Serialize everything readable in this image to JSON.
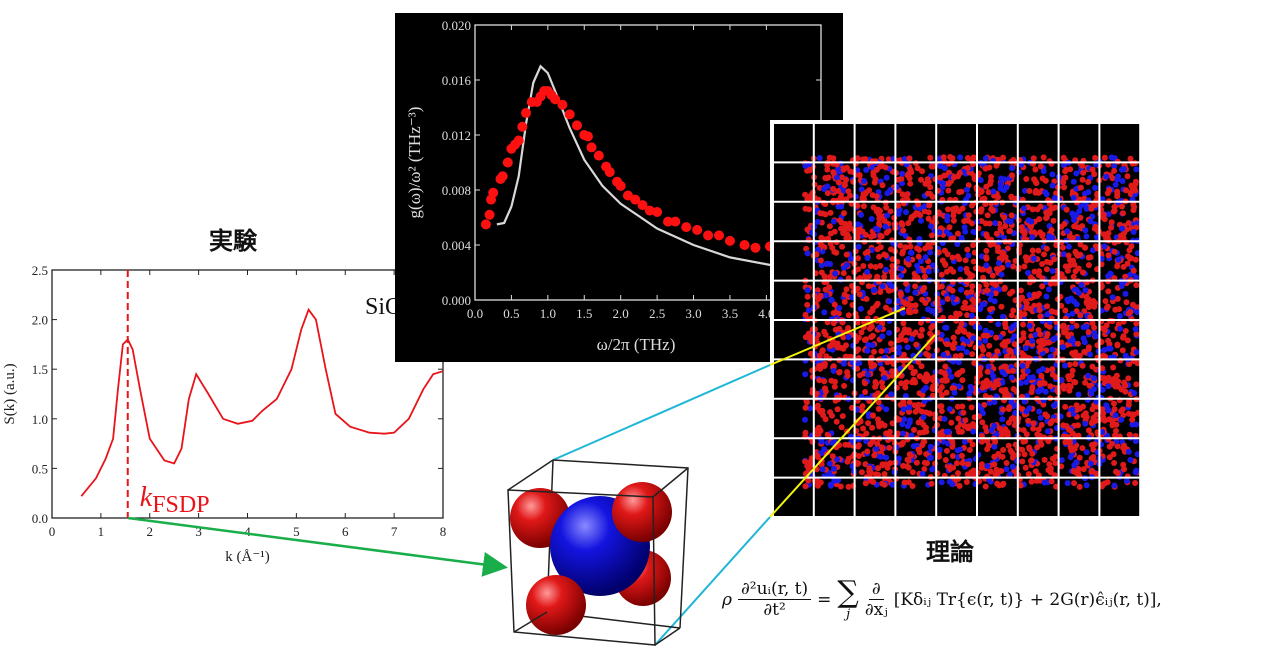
{
  "labels": {
    "experiment": "実験",
    "theory": "理論",
    "material": "SiO2",
    "k_fsdp_main": "k",
    "k_fsdp_sub": "FSDP"
  },
  "equation": {
    "rho": "ρ",
    "lhs_num": "∂²uᵢ(r, t)",
    "lhs_den": "∂t²",
    "equals": "=",
    "sum": "∑",
    "sum_index": "j",
    "d_num": "∂",
    "d_den": "∂xⱼ",
    "rhs": "[Kδᵢⱼ Tr{ϵ(r, t)} + 2G(r)ϵ̂ᵢⱼ(r, t)],"
  },
  "colors": {
    "experiment_curve": "#e8141a",
    "theory_curve": "#d8d8d8",
    "si_atom": "#1010d0",
    "o_atom": "#d81010",
    "arrow": "#1aae4a",
    "cyan_lines": "#1fb6d8",
    "yellow_lines": "#f2f20a"
  },
  "chart_data": [
    {
      "type": "line",
      "xlabel": "k (Å⁻¹)",
      "ylabel": "S(k) (a.u.)",
      "xlim": [
        0,
        8
      ],
      "ylim": [
        0,
        2.5
      ],
      "xticks": [
        "0",
        "1",
        "2",
        "3",
        "4",
        "5",
        "6",
        "7",
        "8"
      ],
      "yticks": [
        "0.0",
        "0.5",
        "1.0",
        "1.5",
        "2.0",
        "2.5"
      ],
      "grid": false,
      "annotation": {
        "text": "kFSDP",
        "x": 1.55
      },
      "series": [
        {
          "x": [
            0.6,
            0.9,
            1.1,
            1.25,
            1.35,
            1.45,
            1.55,
            1.65,
            1.8,
            2.0,
            2.3,
            2.5,
            2.65,
            2.8,
            2.95,
            3.2,
            3.5,
            3.8,
            4.1,
            4.3,
            4.6,
            4.9,
            5.1,
            5.25,
            5.4,
            5.6,
            5.8,
            6.1,
            6.5,
            6.8,
            7.0,
            7.3,
            7.6,
            7.8,
            8.0
          ],
          "y": [
            0.22,
            0.4,
            0.6,
            0.8,
            1.3,
            1.75,
            1.8,
            1.7,
            1.3,
            0.8,
            0.58,
            0.55,
            0.7,
            1.2,
            1.45,
            1.25,
            1.0,
            0.95,
            0.98,
            1.08,
            1.2,
            1.5,
            1.9,
            2.1,
            2.0,
            1.5,
            1.05,
            0.92,
            0.86,
            0.85,
            0.86,
            1.0,
            1.3,
            1.45,
            1.48
          ]
        }
      ]
    },
    {
      "type": "scatter",
      "xlabel": "ω/2π (THz)",
      "ylabel": "g(ω)/ω² (THz⁻³)",
      "xlim": [
        0,
        4.75
      ],
      "ylim": [
        0,
        0.02
      ],
      "xticks": [
        "0.0",
        "0.5",
        "1.0",
        "1.5",
        "2.0",
        "2.5",
        "3.0",
        "3.5",
        "4.0"
      ],
      "yticks": [
        "0.000",
        "0.004",
        "0.008",
        "0.012",
        "0.016",
        "0.020"
      ],
      "grid": false,
      "series": [
        {
          "style": "points",
          "x": [
            0.15,
            0.2,
            0.22,
            0.25,
            0.35,
            0.38,
            0.45,
            0.5,
            0.55,
            0.6,
            0.65,
            0.7,
            0.78,
            0.85,
            0.9,
            0.95,
            1.0,
            1.05,
            1.1,
            1.2,
            1.3,
            1.4,
            1.5,
            1.55,
            1.6,
            1.7,
            1.8,
            1.85,
            1.95,
            2.0,
            2.1,
            2.2,
            2.3,
            2.4,
            2.5,
            2.65,
            2.75,
            2.9,
            3.05,
            3.2,
            3.35,
            3.5,
            3.7,
            3.85,
            4.05,
            4.25
          ],
          "y": [
            0.0055,
            0.0062,
            0.0073,
            0.0078,
            0.0088,
            0.009,
            0.01,
            0.011,
            0.0113,
            0.0116,
            0.0126,
            0.0136,
            0.0144,
            0.0144,
            0.0148,
            0.0152,
            0.0152,
            0.0149,
            0.0146,
            0.0142,
            0.0135,
            0.0127,
            0.012,
            0.0119,
            0.0111,
            0.0105,
            0.0097,
            0.0093,
            0.0086,
            0.0083,
            0.0076,
            0.0073,
            0.0069,
            0.0065,
            0.0064,
            0.0057,
            0.0057,
            0.0053,
            0.0051,
            0.0047,
            0.0047,
            0.0043,
            0.004,
            0.0038,
            0.0039,
            0.0037
          ]
        },
        {
          "style": "line",
          "x": [
            0.3,
            0.4,
            0.5,
            0.6,
            0.7,
            0.8,
            0.9,
            1.0,
            1.1,
            1.3,
            1.5,
            1.75,
            2.0,
            2.5,
            3.0,
            3.5,
            4.0,
            4.3
          ],
          "y": [
            0.0055,
            0.0056,
            0.0068,
            0.009,
            0.0128,
            0.0158,
            0.017,
            0.0165,
            0.0152,
            0.0125,
            0.0102,
            0.0083,
            0.007,
            0.0052,
            0.004,
            0.0031,
            0.0026,
            0.0023
          ]
        }
      ]
    }
  ]
}
